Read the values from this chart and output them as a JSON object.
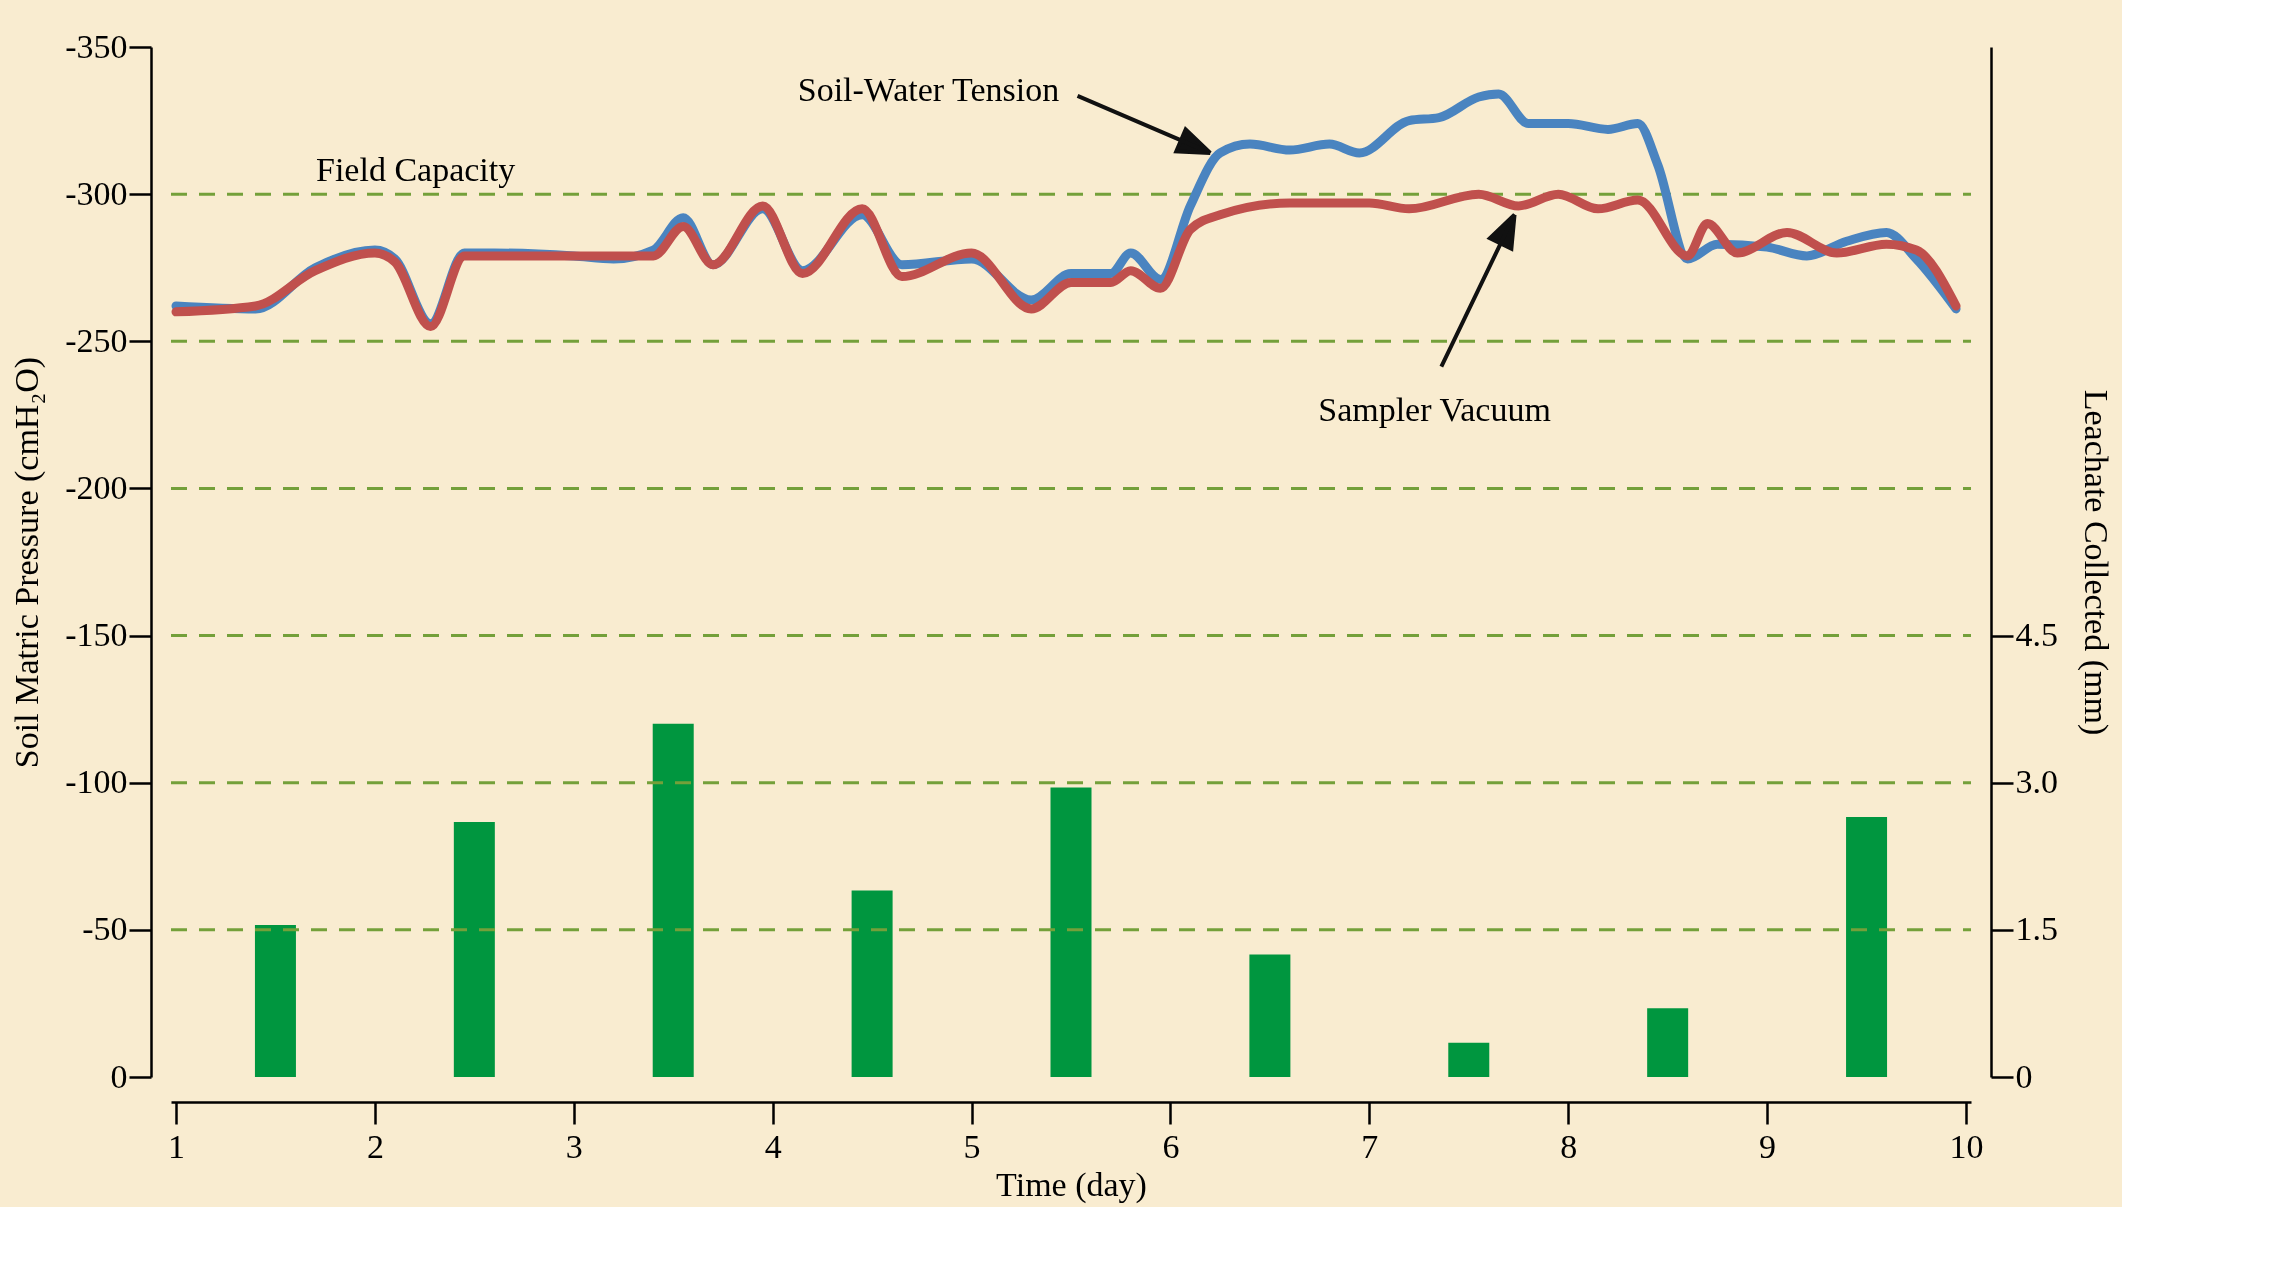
{
  "chart_data": {
    "type": "line",
    "xlabel": "Time (day)",
    "ylabel": "Soil Matric Pressure (cmH₂O)",
    "y2label": "Leachate Collected (mm)",
    "xlim": [
      1,
      10
    ],
    "xticks": [
      1,
      2,
      3,
      4,
      5,
      6,
      7,
      8,
      9,
      10
    ],
    "ylim": [
      0,
      -350
    ],
    "yticks": [
      0,
      -50,
      -100,
      -150,
      -200,
      -250,
      -300,
      -350
    ],
    "y2lim": [
      0,
      10.5
    ],
    "y2ticks": [
      0,
      1.5,
      {
        "value": 3,
        "label": "3.0"
      },
      4.5
    ],
    "grid": false,
    "line_style": "solid",
    "series": [
      {
        "type": "bar",
        "axis": "y2",
        "color": "#00963f",
        "x": [
          1.5,
          2.5,
          3.5,
          4.5,
          5.5,
          6.5,
          7.5,
          8.5,
          9.5
        ],
        "values": [
          1.55,
          2.6,
          3.6,
          1.9,
          2.95,
          1.25,
          0.35,
          0.7,
          2.65
        ]
      },
      {
        "color": "#4a84c0",
        "x": [
          1.0,
          1.4,
          1.7,
          2.0,
          2.1,
          2.28,
          2.45,
          2.6,
          3.0,
          3.2,
          3.4,
          3.55,
          3.7,
          3.95,
          4.15,
          4.45,
          4.65,
          5.0,
          5.3,
          5.5,
          5.7,
          5.8,
          5.95,
          6.1,
          6.25,
          6.4,
          6.6,
          6.8,
          6.95,
          7.2,
          7.35,
          7.55,
          7.65,
          7.8,
          8.0,
          8.2,
          8.35,
          8.45,
          8.6,
          8.75,
          9.0,
          9.2,
          9.4,
          9.6,
          9.75,
          9.95
        ],
        "values": [
          -262,
          -261,
          -275,
          -281,
          -278,
          -256,
          -280,
          -280,
          -279,
          -278,
          -281,
          -292,
          -276,
          -295,
          -274,
          -293,
          -276,
          -278,
          -264,
          -273,
          -273,
          -280,
          -271,
          -296,
          -314,
          -317,
          -315,
          -317,
          -314,
          -325,
          -326,
          -333,
          -334,
          -324,
          -324,
          -322,
          -324,
          -310,
          -278,
          -283,
          -282,
          -279,
          -284,
          -287,
          -278,
          -261
        ]
      },
      {
        "color": "#c0504d",
        "x": [
          1.0,
          1.4,
          1.7,
          2.0,
          2.1,
          2.28,
          2.45,
          3.0,
          3.4,
          3.55,
          3.7,
          3.95,
          4.15,
          4.45,
          4.65,
          5.0,
          5.3,
          5.5,
          5.7,
          5.8,
          5.95,
          6.1,
          6.25,
          6.6,
          7.0,
          7.2,
          7.55,
          7.75,
          7.95,
          8.15,
          8.35,
          8.6,
          8.7,
          8.85,
          9.1,
          9.35,
          9.6,
          9.75,
          9.95
        ],
        "values": [
          -260,
          -262,
          -274,
          -280,
          -277,
          -255,
          -279,
          -279,
          -279,
          -289,
          -276,
          -296,
          -273,
          -295,
          -272,
          -280,
          -261,
          -270,
          -270,
          -274,
          -268,
          -288,
          -293,
          -297,
          -297,
          -295,
          -300,
          -296,
          -300,
          -295,
          -298,
          -279,
          -290,
          -280,
          -287,
          -280,
          -283,
          -281,
          -262
        ]
      }
    ],
    "ref_lines": [
      {
        "axis": "y",
        "value": -50,
        "color": "#74a03a",
        "line_style": "dashed"
      },
      {
        "axis": "y",
        "value": -100,
        "color": "#74a03a",
        "line_style": "dashed"
      },
      {
        "axis": "y",
        "value": -150,
        "color": "#74a03a",
        "line_style": "dashed"
      },
      {
        "axis": "y",
        "value": -200,
        "color": "#74a03a",
        "line_style": "dashed"
      },
      {
        "axis": "y",
        "value": -250,
        "color": "#74a03a",
        "line_style": "dashed"
      },
      {
        "axis": "y",
        "value": -300,
        "label": "Field Capacity",
        "color": "#74a03a",
        "line_style": "dashed"
      }
    ],
    "annotations": [
      {
        "text": "Soil-Water Tension",
        "x": 6.2,
        "y": -314
      },
      {
        "text": "Sampler Vacuum",
        "x": 7.73,
        "y": -293
      }
    ]
  }
}
